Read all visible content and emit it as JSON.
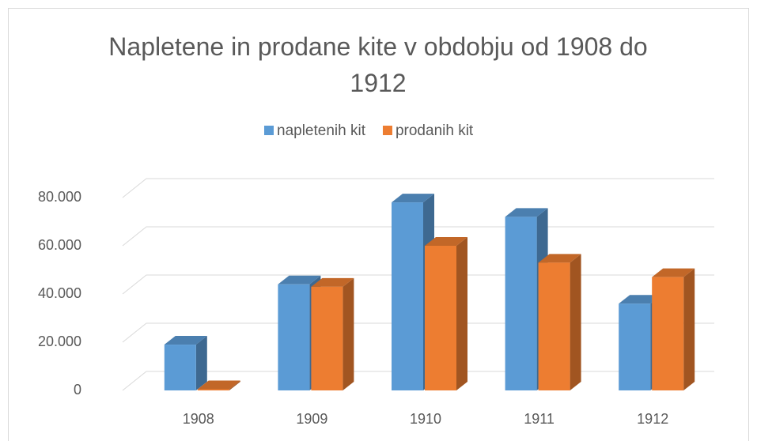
{
  "chart_data": {
    "type": "bar3d",
    "title": "Napletene in prodane kite v obdobju od 1908 do 1912",
    "categories": [
      "1908",
      "1909",
      "1910",
      "1911",
      "1912"
    ],
    "series": [
      {
        "name": "napletenih kit",
        "color": "#5b9bd5",
        "values": [
          19000,
          44000,
          78000,
          72000,
          36000
        ]
      },
      {
        "name": "prodanih kit",
        "color": "#ed7d31",
        "values": [
          500,
          43000,
          60000,
          53000,
          47000
        ]
      }
    ],
    "ylim": [
      0,
      80000
    ],
    "yticks": [
      0,
      {
        "value": 20000,
        "label": "20.000"
      },
      {
        "value": 40000,
        "label": "40.000"
      },
      {
        "value": 60000,
        "label": "60.000"
      },
      {
        "value": 80000,
        "label": "80.000"
      }
    ],
    "grid": true,
    "legend": "top"
  }
}
